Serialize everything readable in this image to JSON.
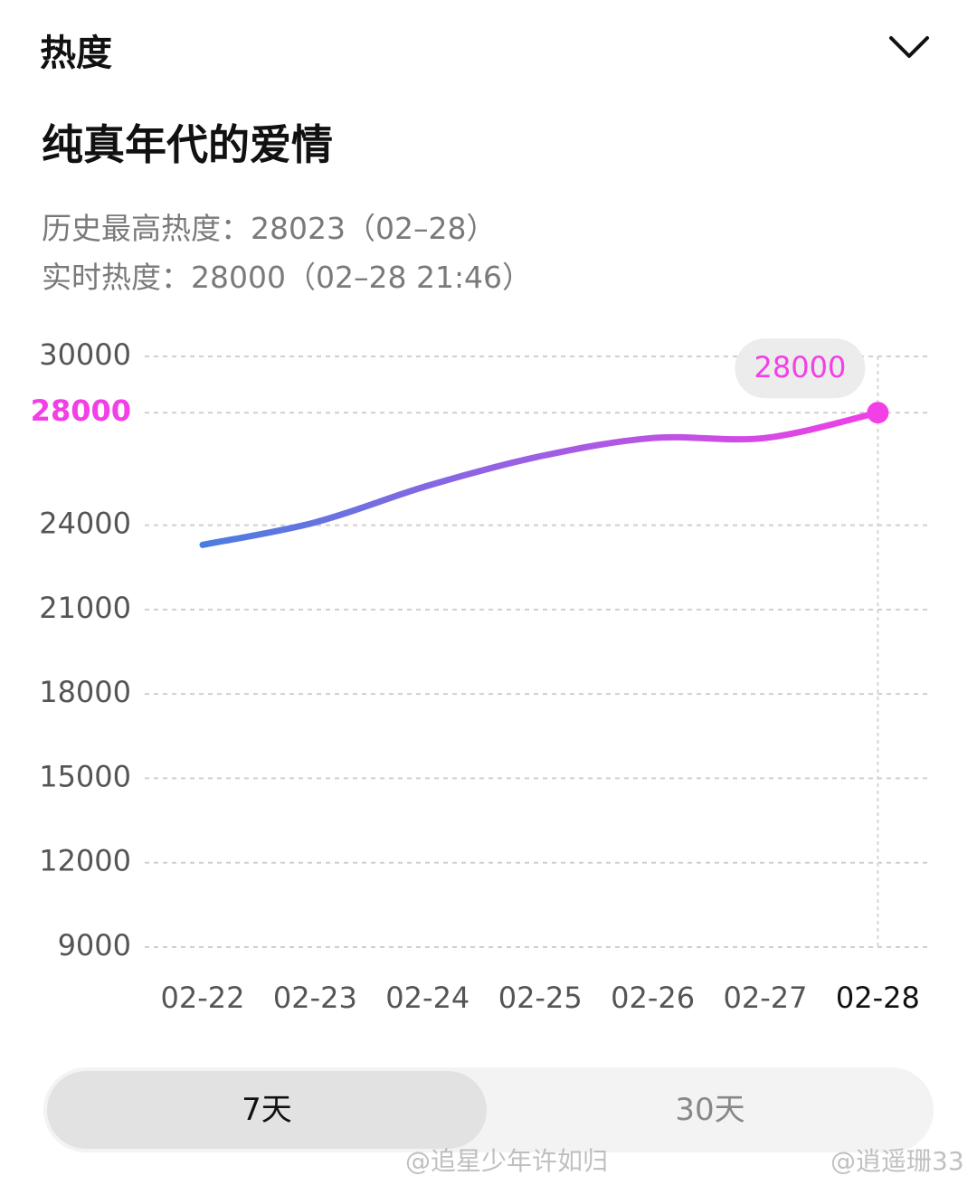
{
  "header": {
    "title": "热度"
  },
  "title": "纯真年代的爱情",
  "info": [
    "历史最高热度：28023（02–28）",
    "实时热度：28000（02–28 21:46）"
  ],
  "chart_data": {
    "type": "line",
    "categories": [
      "02-22",
      "02-23",
      "02-24",
      "02-25",
      "02-26",
      "02-27",
      "02-28"
    ],
    "series": [
      {
        "values": [
          23300,
          24100,
          25400,
          26450,
          27100,
          27100,
          28000
        ],
        "color": [
          "#4a7de0",
          "#f23fe6"
        ]
      }
    ],
    "ylim": [
      9000,
      30000
    ],
    "yticks": [
      9000,
      12000,
      15000,
      18000,
      21000,
      24000,
      28000,
      30000
    ],
    "grid": true
  },
  "tabs": [
    {
      "label": "7天",
      "active": true
    },
    {
      "label": "30天",
      "active": false
    }
  ],
  "watermarks": [
    "@追星少年许如归",
    "@逍遥珊33"
  ]
}
